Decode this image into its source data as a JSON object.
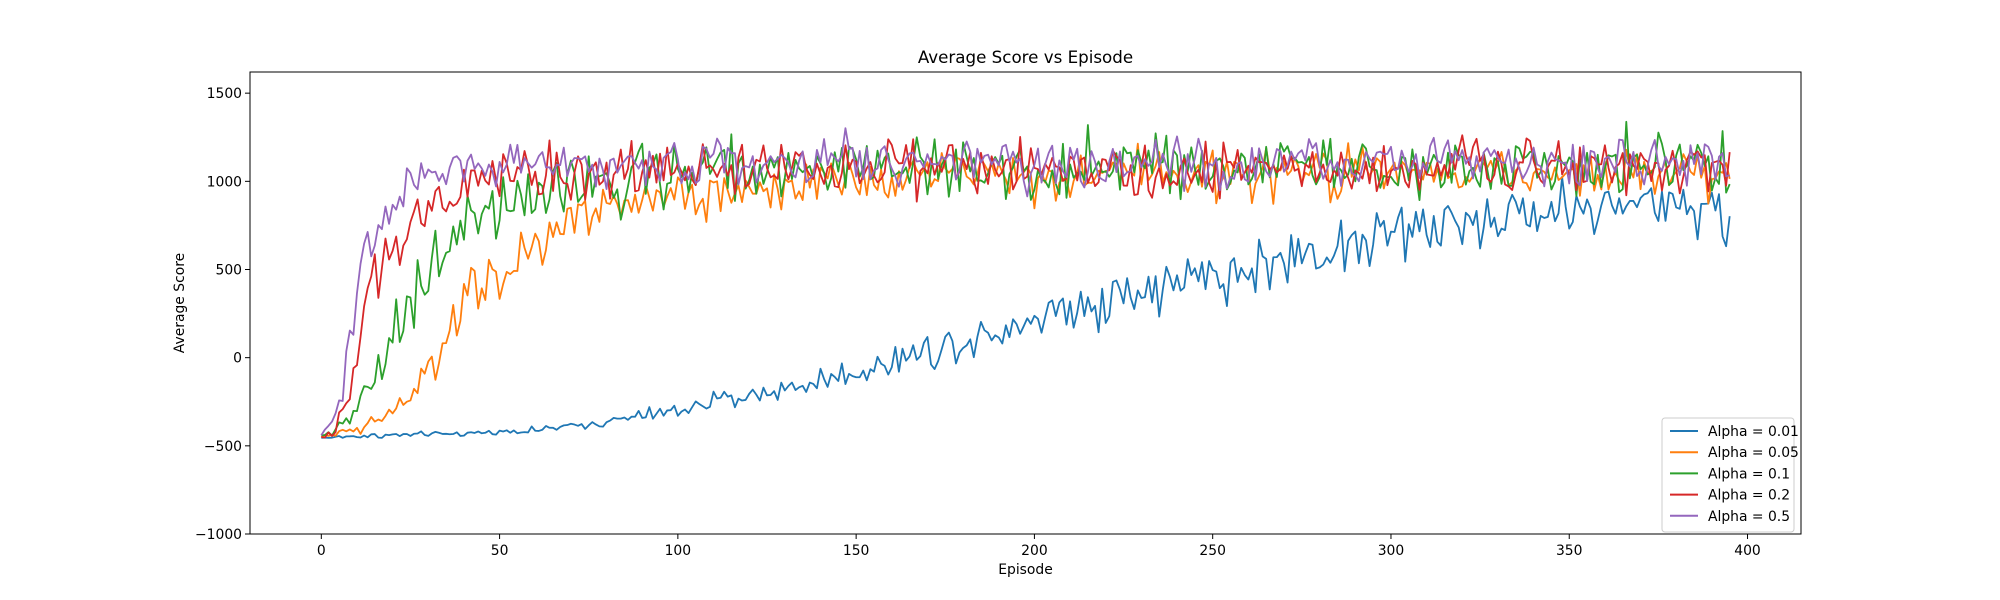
{
  "chart_data": {
    "type": "line",
    "title": "Average Score vs Episode",
    "xlabel": "Episode",
    "ylabel": "Average Score",
    "xlim": [
      -20,
      415
    ],
    "ylim": [
      -1000,
      1620
    ],
    "x_ticks": [
      0,
      50,
      100,
      150,
      200,
      250,
      300,
      350,
      400
    ],
    "y_ticks": [
      -1000,
      -500,
      0,
      500,
      1000,
      1500
    ],
    "x_tick_labels": [
      "0",
      "50",
      "100",
      "150",
      "200",
      "250",
      "300",
      "350",
      "400"
    ],
    "y_tick_labels": [
      "−1000",
      "−500",
      "0",
      "500",
      "1000",
      "1500"
    ],
    "grid": false,
    "legend_position": "lower right",
    "episodes": 396,
    "series": [
      {
        "name": "Alpha = 0.01",
        "color": "#1f77b4",
        "x": [
          0,
          10,
          20,
          30,
          40,
          50,
          60,
          70,
          80,
          90,
          100,
          110,
          120,
          130,
          140,
          150,
          160,
          170,
          180,
          190,
          200,
          210,
          220,
          230,
          240,
          250,
          260,
          270,
          280,
          290,
          300,
          310,
          320,
          330,
          340,
          350,
          360,
          370,
          380,
          390,
          395
        ],
        "values": [
          -455,
          -445,
          -440,
          -435,
          -430,
          -420,
          -410,
          -390,
          -365,
          -330,
          -300,
          -250,
          -215,
          -180,
          -130,
          -80,
          -20,
          40,
          100,
          170,
          230,
          290,
          340,
          380,
          420,
          460,
          500,
          550,
          610,
          660,
          700,
          730,
          760,
          800,
          830,
          850,
          860,
          870,
          880,
          880,
          650
        ],
        "noise": [
          5,
          12,
          12,
          12,
          12,
          12,
          15,
          18,
          22,
          28,
          32,
          40,
          45,
          50,
          60,
          70,
          80,
          90,
          100,
          110,
          120,
          125,
          130,
          135,
          140,
          145,
          150,
          150,
          150,
          150,
          150,
          150,
          150,
          150,
          150,
          150,
          150,
          150,
          150,
          150,
          150
        ]
      },
      {
        "name": "Alpha = 0.05",
        "color": "#ff7f0e",
        "x": [
          0,
          5,
          10,
          15,
          20,
          25,
          30,
          35,
          40,
          45,
          50,
          55,
          60,
          65,
          70,
          75,
          80,
          90,
          100,
          120,
          150,
          200,
          250,
          300,
          350,
          395
        ],
        "values": [
          -450,
          -430,
          -410,
          -370,
          -300,
          -200,
          -100,
          100,
          320,
          430,
          500,
          560,
          650,
          740,
          800,
          850,
          870,
          900,
          930,
          980,
          1020,
          1030,
          1040,
          1040,
          1040,
          1040
        ],
        "noise": [
          10,
          15,
          20,
          30,
          40,
          60,
          80,
          120,
          130,
          130,
          130,
          130,
          130,
          120,
          120,
          110,
          110,
          110,
          110,
          110,
          110,
          110,
          110,
          110,
          110,
          110
        ]
      },
      {
        "name": "Alpha = 0.1",
        "color": "#2ca02c",
        "x": [
          0,
          5,
          10,
          15,
          20,
          25,
          30,
          35,
          40,
          45,
          50,
          55,
          60,
          65,
          70,
          80,
          90,
          100,
          150,
          200,
          250,
          300,
          350,
          395
        ],
        "values": [
          -440,
          -400,
          -300,
          -100,
          150,
          350,
          500,
          650,
          800,
          850,
          860,
          880,
          930,
          960,
          990,
          1020,
          1040,
          1060,
          1080,
          1080,
          1080,
          1080,
          1080,
          1080
        ],
        "noise": [
          10,
          30,
          80,
          150,
          180,
          180,
          170,
          160,
          150,
          150,
          150,
          150,
          150,
          150,
          150,
          150,
          150,
          150,
          150,
          150,
          150,
          150,
          150,
          150
        ]
      },
      {
        "name": "Alpha = 0.2",
        "color": "#d62728",
        "x": [
          0,
          3,
          6,
          9,
          12,
          15,
          20,
          25,
          30,
          35,
          40,
          50,
          60,
          70,
          80,
          100,
          150,
          200,
          250,
          300,
          350,
          395
        ],
        "values": [
          -450,
          -420,
          -300,
          -50,
          250,
          450,
          650,
          800,
          870,
          900,
          950,
          1000,
          1040,
          1060,
          1070,
          1080,
          1080,
          1080,
          1080,
          1080,
          1080,
          1080
        ],
        "noise": [
          10,
          30,
          80,
          130,
          150,
          150,
          140,
          130,
          130,
          130,
          130,
          130,
          130,
          130,
          130,
          130,
          130,
          130,
          130,
          130,
          130,
          130
        ]
      },
      {
        "name": "Alpha = 0.5",
        "color": "#9467bd",
        "x": [
          0,
          3,
          6,
          9,
          12,
          15,
          20,
          25,
          30,
          40,
          50,
          60,
          80,
          100,
          150,
          200,
          250,
          300,
          350,
          395
        ],
        "values": [
          -440,
          -380,
          -150,
          200,
          500,
          700,
          900,
          1000,
          1050,
          1080,
          1100,
          1100,
          1100,
          1100,
          1100,
          1100,
          1100,
          1100,
          1100,
          1100
        ],
        "noise": [
          10,
          40,
          120,
          170,
          170,
          140,
          120,
          110,
          110,
          110,
          110,
          110,
          110,
          110,
          110,
          110,
          110,
          110,
          110,
          110
        ]
      }
    ]
  }
}
